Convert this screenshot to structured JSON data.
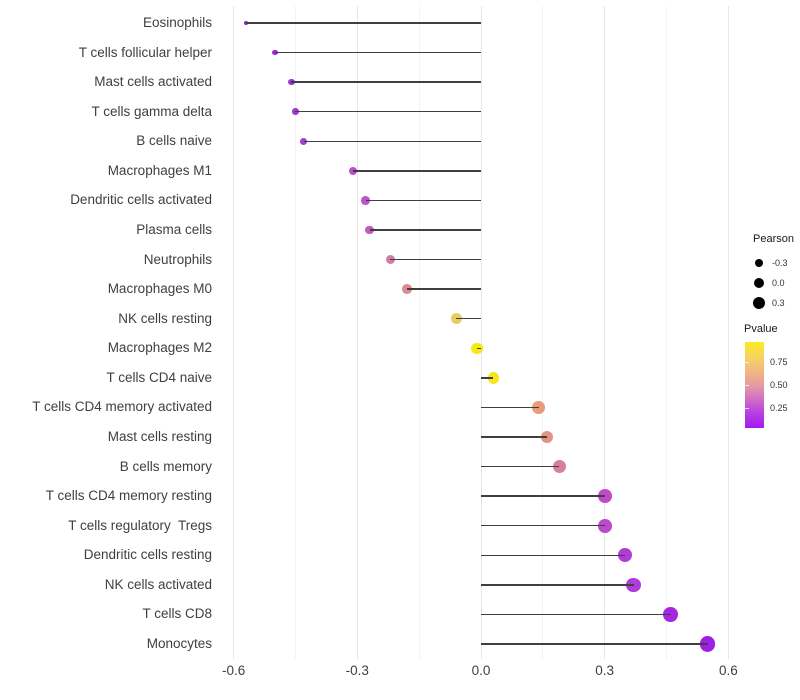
{
  "chart_data": {
    "type": "lollipop",
    "title": "",
    "xlabel": "",
    "ylabel": "",
    "x_tick_labels": [
      "-0.6",
      "-0.3",
      "0.0",
      "0.3",
      "0.6"
    ],
    "x_tick_values": [
      -0.6,
      -0.3,
      0.0,
      0.3,
      0.6
    ],
    "x_minor_tick_values": [
      -0.45,
      -0.15,
      0.15,
      0.45
    ],
    "xlim": [
      -0.63,
      0.64
    ],
    "grid": "vertical major+minor, light gray on white",
    "categories": [
      "Eosinophils",
      "T cells follicular helper",
      "Mast cells activated",
      "T cells gamma delta",
      "B cells naive",
      "Macrophages M1",
      "Dendritic cells activated",
      "Plasma cells",
      "Neutrophils",
      "Macrophages M0",
      "NK cells resting",
      "Macrophages M2",
      "T cells CD4 naive",
      "T cells CD4 memory activated",
      "Mast cells resting",
      "B cells memory",
      "T cells CD4 memory resting",
      "T cells regulatory  Tregs",
      "Dendritic cells resting",
      "NK cells activated",
      "T cells CD8",
      "Monocytes"
    ],
    "series": [
      {
        "name": "Pearson correlation",
        "values": [
          -0.57,
          -0.5,
          -0.46,
          -0.45,
          -0.43,
          -0.31,
          -0.28,
          -0.27,
          -0.22,
          -0.18,
          -0.06,
          -0.01,
          0.03,
          0.14,
          0.16,
          0.19,
          0.3,
          0.3,
          0.35,
          0.37,
          0.46,
          0.55
        ]
      },
      {
        "name": "Pvalue (estimated from color scale)",
        "values": [
          0.04,
          0.07,
          0.1,
          0.1,
          0.13,
          0.25,
          0.27,
          0.3,
          0.45,
          0.55,
          0.8,
          0.95,
          0.93,
          0.62,
          0.58,
          0.48,
          0.3,
          0.3,
          0.22,
          0.22,
          0.1,
          0.05
        ]
      }
    ],
    "dot_colors": [
      "#8E24D8",
      "#9A2BDA",
      "#A135D4",
      "#A136D4",
      "#A83ED1",
      "#B951C8",
      "#BC55C5",
      "#C05CBF",
      "#D07CA6",
      "#DD8B92",
      "#EACB5F",
      "#F8E818",
      "#F7E61E",
      "#E89C79",
      "#E39380",
      "#D67F9F",
      "#BE4BC9",
      "#BD4ACA",
      "#B13BD6",
      "#AF3CD9",
      "#A527E2",
      "#9D1FE9"
    ],
    "legend": {
      "size": {
        "title": "Pearson",
        "entries": [
          {
            "label": "-0.3",
            "value": -0.3
          },
          {
            "label": "0.0",
            "value": 0.0
          },
          {
            "label": "0.3",
            "value": 0.3
          }
        ]
      },
      "color": {
        "title": "Pvalue",
        "tick_labels": [
          "0.75",
          "0.50",
          "0.25"
        ],
        "gradient_stops": [
          [
            0.0,
            "#FBEC1F"
          ],
          [
            0.18,
            "#F6D263"
          ],
          [
            0.38,
            "#EFB189"
          ],
          [
            0.52,
            "#E596A8"
          ],
          [
            0.66,
            "#D26FC4"
          ],
          [
            0.82,
            "#B840E0"
          ],
          [
            1.0,
            "#A31BEF"
          ]
        ]
      }
    },
    "colors": {
      "stem": "#3f3f3f",
      "axis_text": "#3f3f3f",
      "grid_major": "#e7e7e7",
      "grid_minor": "#f3f3f3",
      "legend_dot": "#000000"
    },
    "legend_position": "right"
  }
}
